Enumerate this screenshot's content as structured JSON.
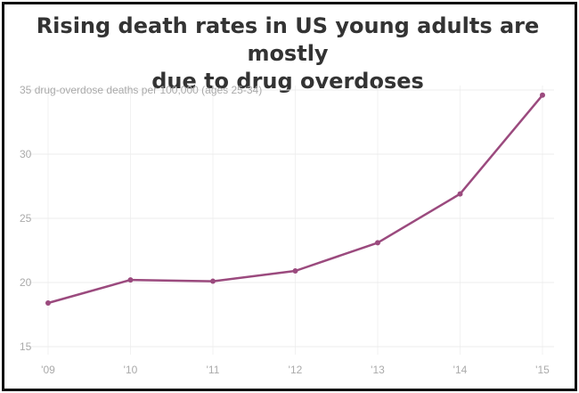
{
  "chart_data": {
    "type": "line",
    "title": "Rising death rates in US young adults are mostly due to drug overdoses",
    "title_lines": [
      "Rising death rates in US young adults are mostly",
      "due to drug overdoses"
    ],
    "ylabel": "drug-overdose deaths per 100,000 (ages 25-34)",
    "x": [
      "'09",
      "'10",
      "'11",
      "'12",
      "'13",
      "'14",
      "'15"
    ],
    "series": [
      {
        "values": [
          18.4,
          20.2,
          20.1,
          20.9,
          23.1,
          26.9,
          34.6
        ]
      }
    ],
    "yticks": [
      15,
      20,
      25,
      30,
      35
    ],
    "ylim": [
      15,
      35
    ],
    "grid": true,
    "line_color": "#9b4a7e"
  }
}
